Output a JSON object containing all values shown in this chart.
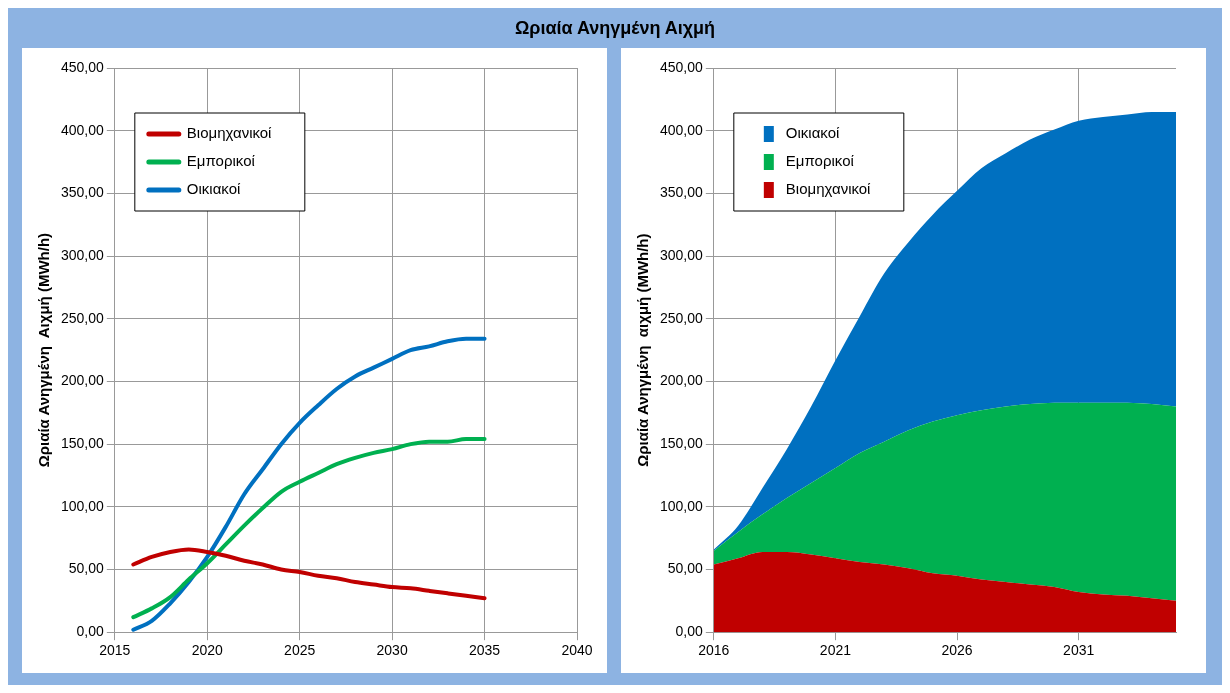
{
  "chart_data": [
    {
      "type": "line",
      "title": "Ωριαία Ανηγμένη Αιχμή",
      "ylabel": "Ωριαία Ανηγμένη  Αιχμή (MWh/h)",
      "x": [
        2016,
        2017,
        2018,
        2019,
        2020,
        2021,
        2022,
        2023,
        2024,
        2025,
        2026,
        2027,
        2028,
        2029,
        2030,
        2031,
        2032,
        2033,
        2034,
        2035
      ],
      "series": [
        {
          "name": "Βιομηχανικοί",
          "color": "#c00000",
          "values": [
            54,
            60,
            64,
            66,
            64,
            61,
            57,
            54,
            50,
            48,
            45,
            43,
            40,
            38,
            36,
            35,
            33,
            31,
            29,
            27
          ]
        },
        {
          "name": "Εμπορικοί",
          "color": "#00b050",
          "values": [
            12,
            19,
            28,
            42,
            55,
            70,
            85,
            99,
            112,
            120,
            127,
            134,
            139,
            143,
            146,
            150,
            152,
            152,
            154,
            154
          ]
        },
        {
          "name": "Οικιακοί",
          "color": "#0070c0",
          "values": [
            2,
            9,
            23,
            40,
            60,
            84,
            110,
            130,
            150,
            167,
            181,
            194,
            204,
            211,
            218,
            225,
            228,
            232,
            234,
            234
          ]
        }
      ],
      "xlim": [
        2015,
        2040
      ],
      "xticks": [
        2015,
        2020,
        2025,
        2030,
        2035,
        2040
      ],
      "ylim": [
        0,
        450
      ],
      "yticks": [
        {
          "value": 0,
          "label": "0,00"
        },
        {
          "value": 50,
          "label": "50,00"
        },
        {
          "value": 100,
          "label": "100,00"
        },
        {
          "value": 150,
          "label": "150,00"
        },
        {
          "value": 200,
          "label": "200,00"
        },
        {
          "value": 250,
          "label": "250,00"
        },
        {
          "value": 300,
          "label": "300,00"
        },
        {
          "value": 350,
          "label": "350,00"
        },
        {
          "value": 400,
          "label": "400,00"
        },
        {
          "value": 450,
          "label": "450,00"
        }
      ],
      "grid": true,
      "legend": "top left",
      "marker": "none",
      "line_style": "solid"
    },
    {
      "type": "area",
      "stacked": true,
      "ylabel": "Ωριαία Ανηγμένη  αιχμή (MWh/h)",
      "categories": [
        "2016",
        null,
        null,
        null,
        null,
        "2021",
        null,
        null,
        null,
        null,
        "2026",
        null,
        null,
        null,
        null,
        "2031",
        null,
        null,
        null,
        null
      ],
      "series": [
        {
          "name": "Βιομηχανικοί",
          "color": "#c00000",
          "values": [
            54,
            59,
            64,
            64,
            62,
            59,
            56,
            54,
            51,
            47,
            45,
            42,
            40,
            38,
            36,
            32,
            30,
            29,
            27,
            25
          ]
        },
        {
          "name": "Εμπορικοί",
          "color": "#00b050",
          "values": [
            11,
            21,
            30,
            43,
            57,
            72,
            87,
            98,
            110,
            121,
            128,
            135,
            140,
            144,
            147,
            151,
            153,
            154,
            155,
            155
          ]
        },
        {
          "name": "Οικιακοί",
          "color": "#0070c0",
          "values": [
            1,
            5,
            21,
            39,
            61,
            86,
            109,
            134,
            150,
            165,
            179,
            193,
            202,
            211,
            218,
            225,
            228,
            230,
            233,
            235
          ]
        }
      ],
      "ylim": [
        0,
        450
      ],
      "yticks": [
        {
          "value": 0,
          "label": "0,00"
        },
        {
          "value": 50,
          "label": "50,00"
        },
        {
          "value": 100,
          "label": "100,00"
        },
        {
          "value": 150,
          "label": "150,00"
        },
        {
          "value": 200,
          "label": "200,00"
        },
        {
          "value": 250,
          "label": "250,00"
        },
        {
          "value": 300,
          "label": "300,00"
        },
        {
          "value": 350,
          "label": "350,00"
        },
        {
          "value": 400,
          "label": "400,00"
        },
        {
          "value": 450,
          "label": "450,00"
        }
      ],
      "grid": true,
      "legend": "top left"
    }
  ]
}
